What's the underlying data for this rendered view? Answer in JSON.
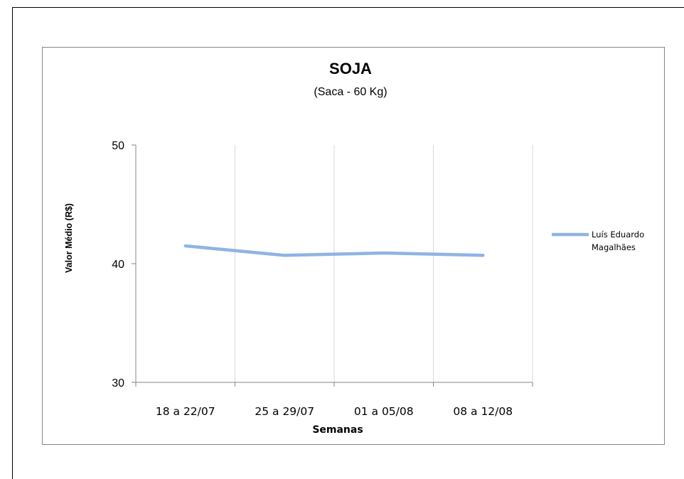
{
  "chart_data": {
    "type": "line",
    "title": "SOJA",
    "subtitle": "(Saca - 60 Kg)",
    "xlabel": "Semanas",
    "ylabel": "Valor Médio (R$)",
    "categories": [
      "18 a 22/07",
      "25 a 29/07",
      "01 a 05/08",
      "08 a 12/08"
    ],
    "ylim": [
      30,
      50
    ],
    "yticks": [
      30,
      40,
      50
    ],
    "grid": "vertical",
    "legend_position": "right",
    "series": [
      {
        "name_lines": [
          "Luís Eduardo",
          "Magalhães"
        ],
        "values": [
          41.5,
          40.7,
          40.9,
          40.7
        ],
        "color": "#8EB4E3"
      }
    ]
  }
}
